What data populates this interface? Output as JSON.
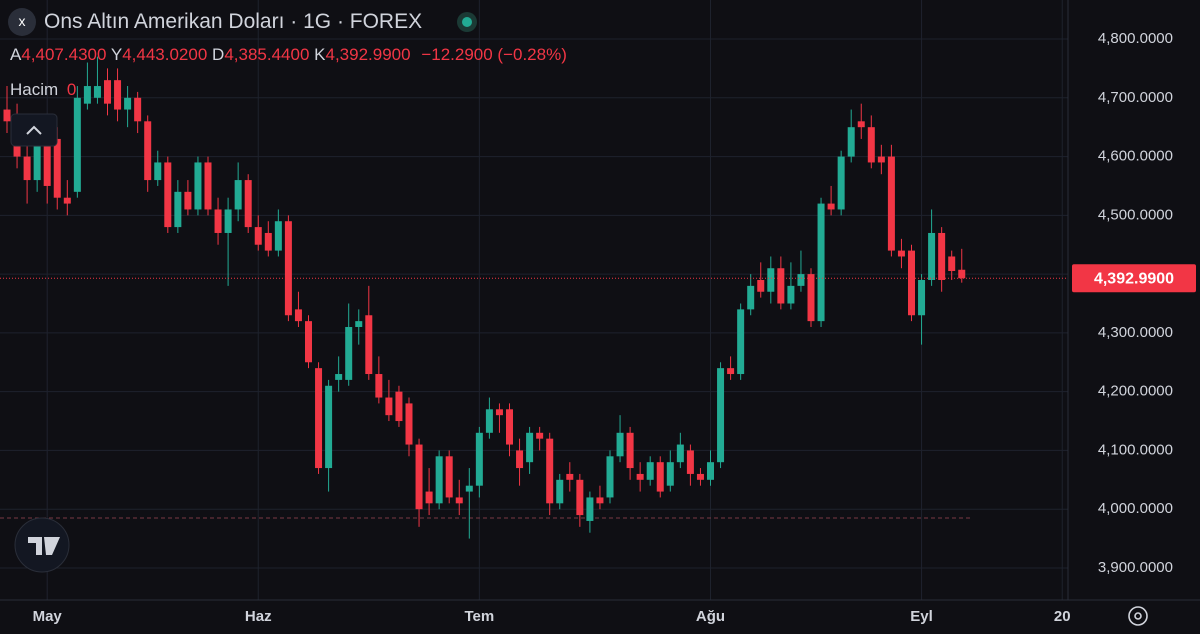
{
  "chart_data": {
    "type": "candlestick",
    "title": "Ons Altın Amerikan Doları · 1G · FOREX",
    "ohlc_labels": {
      "open": "A",
      "high": "Y",
      "low": "D",
      "close": "K"
    },
    "ohlc_values": {
      "open": "4,407.4300",
      "high": "4,443.0200",
      "low": "4,385.4400",
      "close": "4,392.9900"
    },
    "change": "−12.2900 (−0.28%)",
    "volume_label": "Hacim",
    "volume_value": "0",
    "categories": [
      null,
      null,
      null,
      null,
      "May",
      null,
      null,
      null,
      null,
      null,
      null,
      null,
      null,
      null,
      null,
      null,
      null,
      null,
      null,
      null,
      null,
      null,
      null,
      null,
      null,
      "Haz",
      null,
      null,
      null,
      null,
      null,
      null,
      null,
      null,
      null,
      null,
      null,
      null,
      null,
      null,
      null,
      null,
      null,
      null,
      null,
      null,
      null,
      "Tem",
      null,
      null,
      null,
      null,
      null,
      null,
      null,
      null,
      null,
      null,
      null,
      null,
      null,
      null,
      null,
      null,
      null,
      null,
      null,
      null,
      null,
      null,
      "Ağu",
      null,
      null,
      null,
      null,
      null,
      null,
      null,
      null,
      null,
      null,
      null,
      null,
      null,
      null,
      null,
      null,
      null,
      null,
      null,
      null,
      "Eyl",
      null,
      null,
      null,
      null,
      null,
      null,
      null,
      null,
      null,
      null,
      null,
      null,
      null,
      "20"
    ],
    "open": [
      4680,
      4660,
      4600,
      4560,
      4640,
      4630,
      4530,
      4540,
      4690,
      4700,
      4730,
      4730,
      4680,
      4700,
      4660,
      4560,
      4590,
      4480,
      4540,
      4510,
      4590,
      4510,
      4470,
      4510,
      4560,
      4480,
      4470,
      4440,
      4490,
      4340,
      4320,
      4240,
      4070,
      4220,
      4220,
      4310,
      4330,
      4230,
      4190,
      4200,
      4180,
      4110,
      4030,
      4010,
      4090,
      4020,
      4030,
      4040,
      4130,
      4170,
      4170,
      4100,
      4080,
      4130,
      4120,
      4010,
      4060,
      4050,
      3980,
      4020,
      4020,
      4090,
      4130,
      4060,
      4050,
      4080,
      4040,
      4080,
      4100,
      4060,
      4050,
      4080,
      4240,
      4230,
      4340,
      4390,
      4370,
      4410,
      4350,
      4380,
      4400,
      4320,
      4520,
      4510,
      4600,
      4660,
      4650,
      4600,
      4600,
      4440,
      4440,
      4330,
      4390,
      4470,
      4430,
      4407.43,
      null,
      null,
      null,
      null,
      null,
      null,
      null,
      null,
      null,
      null
    ],
    "high": [
      4720,
      4690,
      4640,
      4660,
      4660,
      4650,
      4560,
      4720,
      4760,
      4770,
      4750,
      4750,
      4720,
      4710,
      4670,
      4610,
      4600,
      4560,
      4560,
      4600,
      4600,
      4530,
      4530,
      4590,
      4570,
      4500,
      4490,
      4510,
      4500,
      4370,
      4330,
      4250,
      4220,
      4260,
      4350,
      4340,
      4380,
      4260,
      4220,
      4210,
      4190,
      4120,
      4070,
      4100,
      4100,
      4050,
      4070,
      4140,
      4190,
      4180,
      4180,
      4120,
      4140,
      4140,
      4130,
      4060,
      4080,
      4060,
      4030,
      4040,
      4100,
      4160,
      4140,
      4080,
      4090,
      4090,
      4100,
      4130,
      4110,
      4070,
      4100,
      4250,
      4260,
      4350,
      4400,
      4420,
      4430,
      4430,
      4420,
      4440,
      4410,
      4530,
      4550,
      4610,
      4680,
      4690,
      4670,
      4620,
      4620,
      4460,
      4450,
      4400,
      4510,
      4480,
      4440,
      4443.02,
      null,
      null,
      null,
      null,
      null,
      null,
      null,
      null,
      null,
      null
    ],
    "low": [
      4640,
      4580,
      4520,
      4540,
      4520,
      4510,
      4500,
      4530,
      4680,
      4690,
      4670,
      4660,
      4650,
      4640,
      4540,
      4550,
      4470,
      4470,
      4500,
      4500,
      4500,
      4450,
      4380,
      4490,
      4470,
      4440,
      4430,
      4430,
      4320,
      4310,
      4240,
      4060,
      4030,
      4200,
      4210,
      4280,
      4220,
      4180,
      4150,
      4140,
      4090,
      3970,
      3990,
      4000,
      4010,
      3990,
      3950,
      4020,
      4120,
      4130,
      4090,
      4040,
      4060,
      4100,
      3990,
      4000,
      4030,
      3970,
      3960,
      4000,
      4010,
      4080,
      4050,
      4030,
      4040,
      4020,
      4030,
      4070,
      4040,
      4040,
      4040,
      4070,
      4220,
      4220,
      4330,
      4360,
      4350,
      4340,
      4340,
      4370,
      4310,
      4310,
      4500,
      4500,
      4590,
      4630,
      4580,
      4570,
      4430,
      4410,
      4320,
      4280,
      4380,
      4370,
      4390,
      4385.44,
      null,
      null,
      null,
      null,
      null,
      null,
      null,
      null,
      null,
      null
    ],
    "close": [
      4660,
      4600,
      4560,
      4640,
      4550,
      4530,
      4520,
      4700,
      4720,
      4720,
      4690,
      4680,
      4700,
      4660,
      4560,
      4590,
      4480,
      4540,
      4510,
      4590,
      4510,
      4470,
      4510,
      4560,
      4480,
      4450,
      4440,
      4490,
      4330,
      4320,
      4250,
      4070,
      4210,
      4230,
      4310,
      4320,
      4230,
      4190,
      4160,
      4150,
      4110,
      4000,
      4010,
      4090,
      4020,
      4010,
      4040,
      4130,
      4170,
      4160,
      4110,
      4070,
      4130,
      4120,
      4010,
      4050,
      4050,
      3990,
      4020,
      4010,
      4090,
      4130,
      4070,
      4050,
      4080,
      4030,
      4080,
      4110,
      4060,
      4050,
      4080,
      4240,
      4230,
      4340,
      4380,
      4370,
      4410,
      4350,
      4380,
      4400,
      4320,
      4520,
      4510,
      4600,
      4650,
      4650,
      4590,
      4590,
      4440,
      4430,
      4330,
      4390,
      4470,
      4390,
      4405.28,
      4392.99,
      null,
      null,
      null,
      null,
      null,
      null,
      null,
      null,
      null,
      null
    ],
    "up_color": "#22ab94",
    "down_color": "#f23645",
    "last_price": {
      "value": 4392.99,
      "label": "4,392.9900"
    },
    "reference_line": 3985,
    "ylim": [
      3845.5,
      4866.4
    ],
    "yticks": [
      {
        "value": 3900,
        "label": "3,900.0000"
      },
      {
        "value": 4000,
        "label": "4,000.0000"
      },
      {
        "value": 4100,
        "label": "4,100.0000"
      },
      {
        "value": 4200,
        "label": "4,200.0000"
      },
      {
        "value": 4300,
        "label": "4,300.0000"
      },
      {
        "value": 4400,
        "label": "4,400.0000"
      },
      {
        "value": 4500,
        "label": "4,500.0000"
      },
      {
        "value": 4600,
        "label": "4,600.0000"
      },
      {
        "value": 4700,
        "label": "4,700.0000"
      },
      {
        "value": 4800,
        "label": "4,800.0000"
      }
    ],
    "grid": true
  }
}
